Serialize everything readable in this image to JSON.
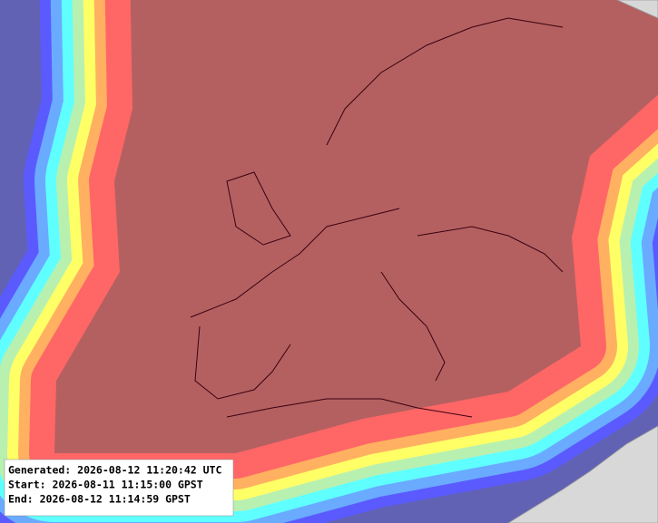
{
  "info": {
    "generated": "Generated: 2026-08-12 11:20:42 UTC",
    "start": "Start: 2026-08-11 11:15:00 GPST",
    "end": "End: 2026-08-12 11:14:59 GPST"
  }
}
